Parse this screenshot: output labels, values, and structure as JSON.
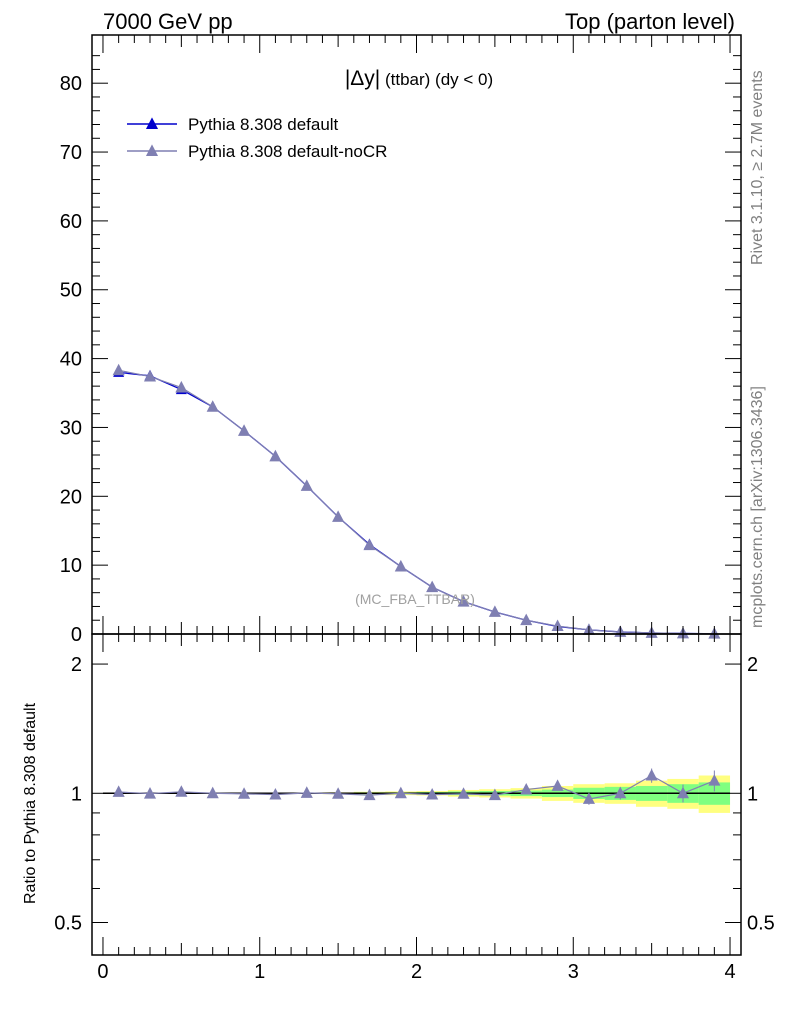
{
  "header": {
    "left": "7000 GeV pp",
    "right": "Top (parton level)"
  },
  "side_labels": {
    "rivet": "Rivet 3.1.10, ≥ 2.7M events",
    "mcplots": "mcplots.cern.ch [arXiv:1306.3436]"
  },
  "analysis_tag": "(MC_FBA_TTBAR)",
  "plot_title": {
    "main": "|Δy|",
    "suffix": " (ttbar)  (dy < 0)"
  },
  "colors": {
    "default": "#0000cc",
    "nocr": "#7f7fb2",
    "band_inner": "#80ff80",
    "band_outer": "#ffff80",
    "ref_line": "#000000"
  },
  "chart_data": [
    {
      "type": "line",
      "panel": "main",
      "x": [
        0.1,
        0.3,
        0.5,
        0.7,
        0.9,
        1.1,
        1.3,
        1.5,
        1.7,
        1.9,
        2.1,
        2.3,
        2.5,
        2.7,
        2.9,
        3.1,
        3.3,
        3.5,
        3.7,
        3.9
      ],
      "series": [
        {
          "name": "Pythia 8.308 default",
          "values": [
            38.0,
            37.5,
            35.5,
            33.0,
            29.5,
            25.8,
            21.5,
            17.0,
            13.0,
            9.8,
            6.8,
            4.7,
            3.2,
            2.0,
            1.1,
            0.6,
            0.3,
            0.15,
            0.08,
            0.04
          ]
        },
        {
          "name": "Pythia 8.308 default-noCR",
          "values": [
            38.3,
            37.4,
            35.8,
            33.0,
            29.5,
            25.8,
            21.5,
            17.0,
            12.9,
            9.8,
            6.8,
            4.7,
            3.2,
            2.0,
            1.15,
            0.6,
            0.3,
            0.16,
            0.08,
            0.04
          ]
        }
      ],
      "xlim": [
        -0.07,
        4.07
      ],
      "ylim": [
        0,
        87
      ],
      "y_ticks": [
        0,
        10,
        20,
        30,
        40,
        50,
        60,
        70,
        80
      ],
      "legend": "top-left"
    },
    {
      "type": "line",
      "panel": "ratio",
      "ylabel": "Ratio to Pythia 8.308 default",
      "x": [
        0.1,
        0.3,
        0.5,
        0.7,
        0.9,
        1.1,
        1.3,
        1.5,
        1.7,
        1.9,
        2.1,
        2.3,
        2.5,
        2.7,
        2.9,
        3.1,
        3.3,
        3.5,
        3.7,
        3.9
      ],
      "series": [
        {
          "name": "Pythia 8.308 default-noCR",
          "values": [
            1.007,
            0.998,
            1.008,
            1.0,
            0.997,
            0.993,
            1.002,
            0.997,
            0.99,
            1.0,
            0.993,
            0.997,
            0.99,
            1.02,
            1.04,
            0.97,
            1.0,
            1.1,
            1.0,
            1.07
          ]
        }
      ],
      "band_inner": [
        0.0,
        0.0,
        0.0,
        0.0,
        0.0,
        0.0,
        0.0,
        0.0,
        0.005,
        0.005,
        0.007,
        0.01,
        0.012,
        0.015,
        0.02,
        0.03,
        0.035,
        0.04,
        0.05,
        0.06
      ],
      "band_outer": [
        0.0,
        0.0,
        0.0,
        0.0,
        0.0,
        0.003,
        0.004,
        0.005,
        0.008,
        0.01,
        0.012,
        0.018,
        0.022,
        0.028,
        0.04,
        0.05,
        0.055,
        0.07,
        0.08,
        0.1
      ],
      "ylim": [
        0.42,
        2.35
      ],
      "y_ticks": [
        0.5,
        1,
        2
      ],
      "x_ticks": [
        0,
        1,
        2,
        3,
        4
      ]
    }
  ]
}
